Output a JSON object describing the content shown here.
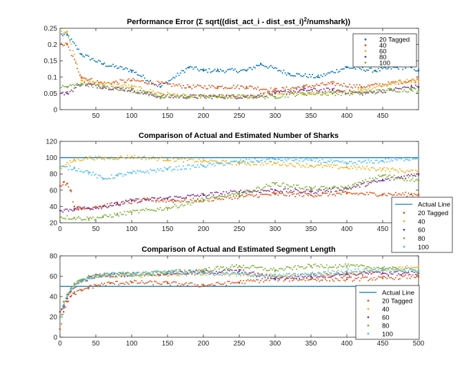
{
  "chart_data": [
    {
      "type": "scatter",
      "title_main": "Performance Error (Σ sqrt((dist_act_i - dist_est_i)",
      "title_sup": "2",
      "title_end": "/numshark))",
      "xlim": [
        0,
        500
      ],
      "ylim": [
        0,
        0.25
      ],
      "xticks": [
        50,
        100,
        150,
        200,
        250,
        300,
        350,
        400,
        450
      ],
      "yticks": [
        0,
        0.05,
        0.1,
        0.15,
        0.2,
        0.25
      ],
      "ytick_labels": [
        "0",
        "0.05",
        "0.1",
        "0.15",
        "0.2",
        "0.25"
      ],
      "legend_position": "top-right",
      "series": [
        {
          "name": "20 Tagged",
          "color": "#0072BD",
          "x": [
            10,
            30,
            60,
            100,
            140,
            180,
            200,
            220,
            260,
            280,
            320,
            360,
            400,
            440,
            470,
            490,
            500
          ],
          "y": [
            0.23,
            0.17,
            0.14,
            0.12,
            0.07,
            0.13,
            0.12,
            0.12,
            0.12,
            0.14,
            0.11,
            0.1,
            0.13,
            0.12,
            0.13,
            0.13,
            0.12
          ]
        },
        {
          "name": "40",
          "color": "#D95319",
          "x": [
            10,
            30,
            60,
            100,
            140,
            180,
            220,
            260,
            300,
            340,
            380,
            420,
            460,
            490,
            500
          ],
          "y": [
            0.2,
            0.1,
            0.08,
            0.09,
            0.08,
            0.07,
            0.07,
            0.07,
            0.06,
            0.07,
            0.08,
            0.07,
            0.08,
            0.09,
            0.09
          ]
        },
        {
          "name": "60",
          "color": "#EDB120",
          "x": [
            10,
            30,
            60,
            100,
            140,
            180,
            220,
            260,
            300,
            340,
            380,
            420,
            460,
            490,
            500
          ],
          "y": [
            0.24,
            0.09,
            0.08,
            0.07,
            0.05,
            0.04,
            0.04,
            0.04,
            0.05,
            0.05,
            0.05,
            0.06,
            0.08,
            0.09,
            0.09
          ]
        },
        {
          "name": "80",
          "color": "#7E2F8E",
          "x": [
            10,
            30,
            60,
            100,
            140,
            180,
            220,
            260,
            300,
            340,
            380,
            420,
            460,
            490,
            500
          ],
          "y": [
            0.05,
            0.08,
            0.07,
            0.06,
            0.04,
            0.04,
            0.04,
            0.04,
            0.05,
            0.06,
            0.06,
            0.05,
            0.06,
            0.07,
            0.07
          ]
        },
        {
          "name": "100",
          "color": "#77AC30",
          "x": [
            10,
            30,
            60,
            100,
            140,
            180,
            220,
            260,
            300,
            340,
            380,
            420,
            460,
            490,
            500
          ],
          "y": [
            0.07,
            0.08,
            0.07,
            0.06,
            0.04,
            0.04,
            0.04,
            0.04,
            0.04,
            0.05,
            0.05,
            0.05,
            0.06,
            0.06,
            0.06
          ]
        }
      ]
    },
    {
      "type": "scatter",
      "title": "Comparison of Actual and Estimated Number of Sharks",
      "xlim": [
        0,
        500
      ],
      "ylim": [
        20,
        120
      ],
      "xticks": [
        0,
        50,
        100,
        150,
        200,
        250,
        300,
        350,
        400,
        450
      ],
      "yticks": [
        20,
        40,
        60,
        80,
        100,
        120
      ],
      "ytick_labels": [
        "20",
        "40",
        "60",
        "80",
        "100",
        "120"
      ],
      "legend_position": "bottom-right",
      "actual_line": {
        "name": "Actual Line",
        "value": 100,
        "color": "#0072BD"
      },
      "series": [
        {
          "name": "20 Tagged",
          "color": "#D95319",
          "x": [
            0,
            5,
            10,
            15,
            20,
            25,
            30,
            40,
            50,
            80,
            120,
            160,
            200,
            250,
            300,
            350,
            400,
            450,
            490,
            500
          ],
          "y": [
            65,
            70,
            68,
            60,
            40,
            38,
            37,
            38,
            40,
            43,
            48,
            47,
            48,
            52,
            55,
            54,
            56,
            55,
            55,
            55
          ]
        },
        {
          "name": "40",
          "color": "#EDB120",
          "x": [
            0,
            20,
            40,
            60,
            80,
            100,
            150,
            200,
            250,
            300,
            350,
            400,
            450,
            500
          ],
          "y": [
            87,
            97,
            100,
            99,
            100,
            101,
            98,
            96,
            93,
            93,
            90,
            88,
            86,
            82
          ]
        },
        {
          "name": "60",
          "color": "#7E2F8E",
          "x": [
            0,
            20,
            40,
            60,
            80,
            100,
            150,
            200,
            250,
            300,
            350,
            400,
            450,
            500
          ],
          "y": [
            35,
            37,
            38,
            40,
            43,
            47,
            50,
            54,
            58,
            60,
            58,
            62,
            72,
            80
          ]
        },
        {
          "name": "80",
          "color": "#77AC30",
          "x": [
            0,
            20,
            40,
            60,
            80,
            100,
            150,
            200,
            250,
            300,
            350,
            400,
            450,
            500
          ],
          "y": [
            27,
            26,
            25,
            27,
            30,
            33,
            38,
            48,
            55,
            68,
            62,
            63,
            78,
            72
          ]
        },
        {
          "name": "100",
          "color": "#4DBEEE",
          "x": [
            0,
            20,
            40,
            60,
            80,
            100,
            150,
            200,
            250,
            300,
            350,
            400,
            450,
            500
          ],
          "y": [
            88,
            87,
            82,
            74,
            78,
            81,
            86,
            90,
            95,
            98,
            97,
            93,
            96,
            100
          ]
        }
      ]
    },
    {
      "type": "scatter",
      "title": "Comparison of Actual and Estimated Segment Length",
      "xlim": [
        0,
        500
      ],
      "ylim": [
        0,
        80
      ],
      "xticks": [
        0,
        50,
        100,
        150,
        200,
        250,
        300,
        350,
        400,
        450,
        500
      ],
      "yticks": [
        0,
        20,
        40,
        60,
        80
      ],
      "ytick_labels": [
        "0",
        "20",
        "40",
        "60",
        "80"
      ],
      "legend_position": "bottom-right",
      "actual_line": {
        "name": "Actual Line",
        "value": 50,
        "color": "#0072BD"
      },
      "series": [
        {
          "name": "20 Tagged",
          "color": "#D95319",
          "x": [
            0,
            5,
            10,
            15,
            20,
            30,
            40,
            50,
            70,
            100,
            150,
            200,
            250,
            300,
            350,
            400,
            450,
            500
          ],
          "y": [
            8,
            25,
            35,
            40,
            43,
            46,
            49,
            51,
            53,
            54,
            53,
            51,
            54,
            57,
            57,
            57,
            58,
            60
          ]
        },
        {
          "name": "40",
          "color": "#EDB120",
          "x": [
            0,
            5,
            10,
            15,
            20,
            30,
            40,
            50,
            70,
            100,
            150,
            200,
            250,
            300,
            350,
            400,
            450,
            500
          ],
          "y": [
            20,
            30,
            38,
            45,
            50,
            55,
            58,
            60,
            61,
            60,
            62,
            63,
            62,
            60,
            62,
            63,
            65,
            70
          ]
        },
        {
          "name": "60",
          "color": "#7E2F8E",
          "x": [
            0,
            5,
            10,
            15,
            20,
            30,
            40,
            50,
            70,
            100,
            150,
            200,
            250,
            300,
            350,
            400,
            450,
            500
          ],
          "y": [
            25,
            30,
            38,
            45,
            50,
            55,
            58,
            60,
            61,
            62,
            63,
            64,
            65,
            58,
            60,
            62,
            63,
            63
          ]
        },
        {
          "name": "80",
          "color": "#77AC30",
          "x": [
            0,
            5,
            10,
            15,
            20,
            30,
            40,
            50,
            70,
            100,
            150,
            200,
            250,
            300,
            350,
            400,
            450,
            500
          ],
          "y": [
            20,
            35,
            42,
            48,
            52,
            56,
            59,
            60,
            62,
            62,
            64,
            66,
            70,
            66,
            70,
            70,
            68,
            65
          ]
        },
        {
          "name": "100",
          "color": "#4DBEEE",
          "x": [
            0,
            5,
            10,
            15,
            20,
            30,
            40,
            50,
            70,
            100,
            150,
            200,
            250,
            300,
            350,
            400,
            450,
            500
          ],
          "y": [
            18,
            32,
            40,
            46,
            50,
            55,
            58,
            60,
            62,
            62,
            64,
            63,
            62,
            60,
            62,
            65,
            66,
            66
          ]
        }
      ]
    }
  ]
}
